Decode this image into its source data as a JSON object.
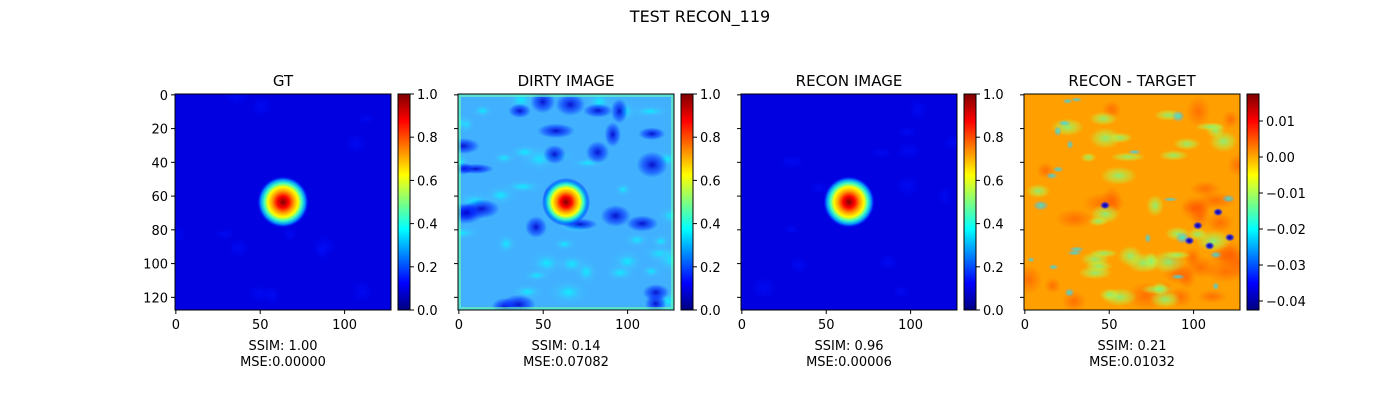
{
  "figure": {
    "suptitle": "TEST RECON_119"
  },
  "colormap": [
    "#00007f",
    "#0000ff",
    "#007fff",
    "#00ffff",
    "#7fff7f",
    "#ffff00",
    "#ff7f00",
    "#ff0000",
    "#7f0000"
  ],
  "chart_data": [
    {
      "type": "heatmap",
      "title": "GT",
      "image_size": [
        128,
        128
      ],
      "xticks": [
        0,
        50,
        100
      ],
      "yticks": [
        0,
        20,
        40,
        60,
        80,
        100,
        120
      ],
      "show_yticklabels": true,
      "colorbar": {
        "range": [
          0.0,
          1.0
        ],
        "ticks": [
          0.0,
          0.2,
          0.4,
          0.6,
          0.8,
          1.0
        ],
        "tick_labels": [
          "0.0",
          "0.2",
          "0.4",
          "0.6",
          "0.8",
          "1.0"
        ]
      },
      "ssim_label": "SSIM: 1.00",
      "mse_label": "MSE:0.00000"
    },
    {
      "type": "heatmap",
      "title": "DIRTY IMAGE",
      "image_size": [
        128,
        128
      ],
      "xticks": [
        0,
        50,
        100
      ],
      "yticks": [
        0,
        20,
        40,
        60,
        80,
        100,
        120
      ],
      "show_yticklabels": false,
      "colorbar": {
        "range": [
          0.0,
          1.0
        ],
        "ticks": [
          0.0,
          0.2,
          0.4,
          0.6,
          0.8,
          1.0
        ],
        "tick_labels": [
          "0.0",
          "0.2",
          "0.4",
          "0.6",
          "0.8",
          "1.0"
        ]
      },
      "ssim_label": "SSIM: 0.14",
      "mse_label": "MSE:0.07082"
    },
    {
      "type": "heatmap",
      "title": "RECON IMAGE",
      "image_size": [
        128,
        128
      ],
      "xticks": [
        0,
        50,
        100
      ],
      "yticks": [
        0,
        20,
        40,
        60,
        80,
        100,
        120
      ],
      "show_yticklabels": false,
      "colorbar": {
        "range": [
          0.0,
          1.0
        ],
        "ticks": [
          0.0,
          0.2,
          0.4,
          0.6,
          0.8,
          1.0
        ],
        "tick_labels": [
          "0.0",
          "0.2",
          "0.4",
          "0.6",
          "0.8",
          "1.0"
        ]
      },
      "ssim_label": "SSIM: 0.96",
      "mse_label": "MSE:0.00006"
    },
    {
      "type": "heatmap",
      "title": "RECON - TARGET",
      "image_size": [
        128,
        128
      ],
      "xticks": [
        0,
        50,
        100
      ],
      "yticks": [
        0,
        20,
        40,
        60,
        80,
        100,
        120
      ],
      "show_yticklabels": false,
      "colorbar": {
        "range": [
          -0.0425,
          0.0175
        ],
        "ticks": [
          -0.04,
          -0.03,
          -0.02,
          -0.01,
          0.0,
          0.01
        ],
        "tick_labels": [
          "−0.04",
          "−0.03",
          "−0.02",
          "−0.01",
          "0.00",
          "0.01"
        ]
      },
      "ssim_label": "SSIM: 0.21",
      "mse_label": "MSE:0.01032"
    }
  ]
}
